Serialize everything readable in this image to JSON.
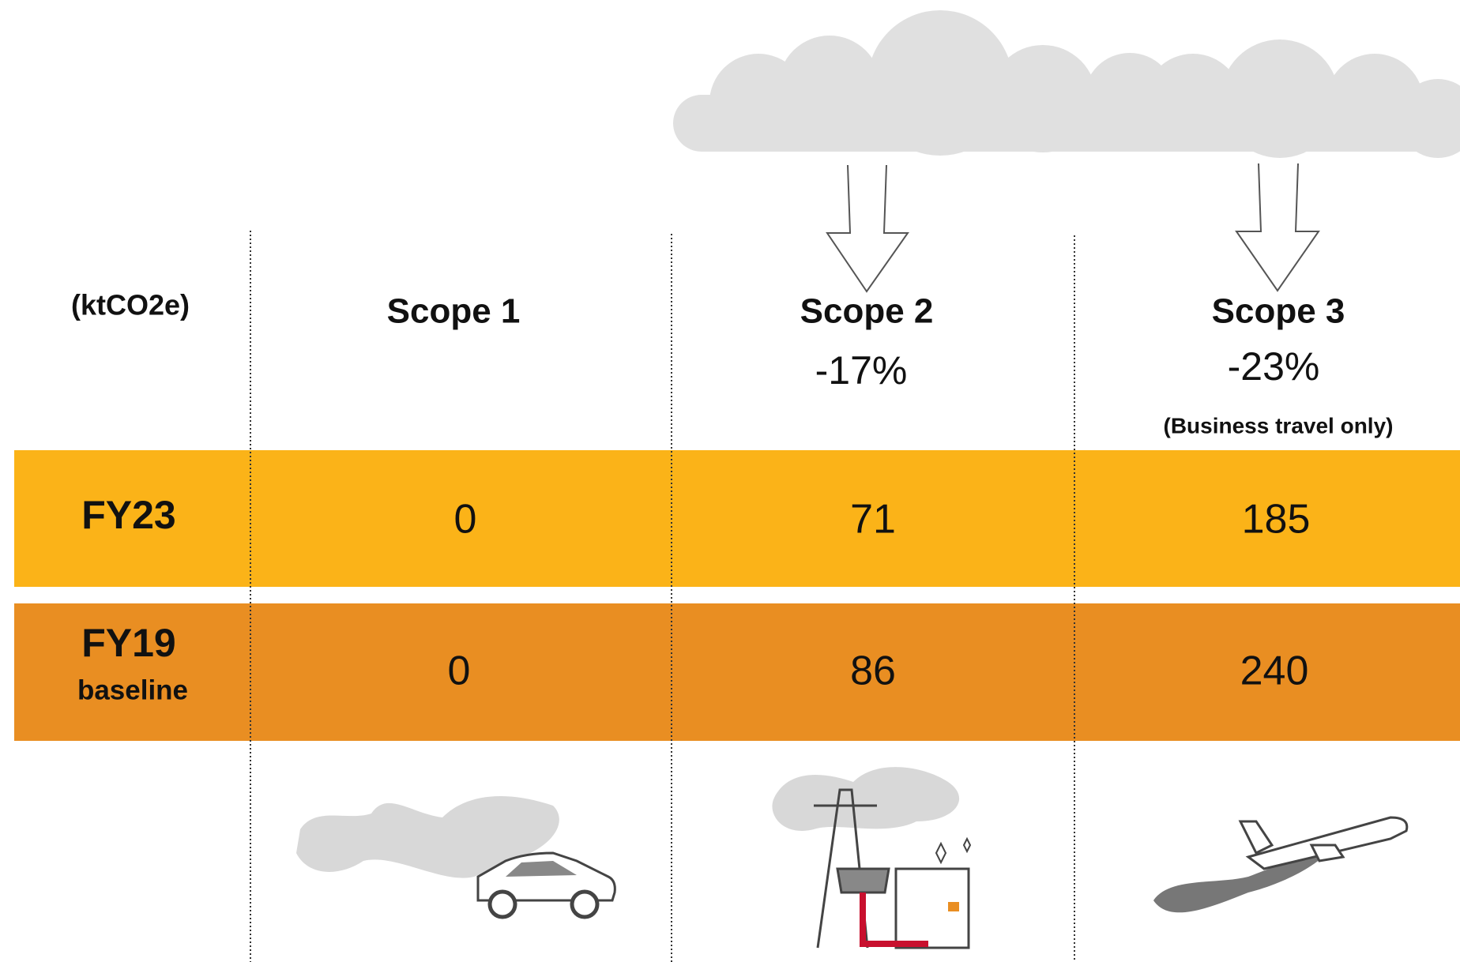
{
  "unit": "(ktCO2e)",
  "columns": [
    {
      "title": "Scope 1"
    },
    {
      "title": "Scope 2",
      "change": "-17%"
    },
    {
      "title": "Scope 3",
      "change": "-23%",
      "note": "(Business travel only)"
    }
  ],
  "rows": [
    {
      "label": "FY23",
      "values": [
        0,
        71,
        185
      ]
    },
    {
      "label": "FY19",
      "sublabel": "baseline",
      "values": [
        0,
        86,
        240
      ]
    }
  ]
}
